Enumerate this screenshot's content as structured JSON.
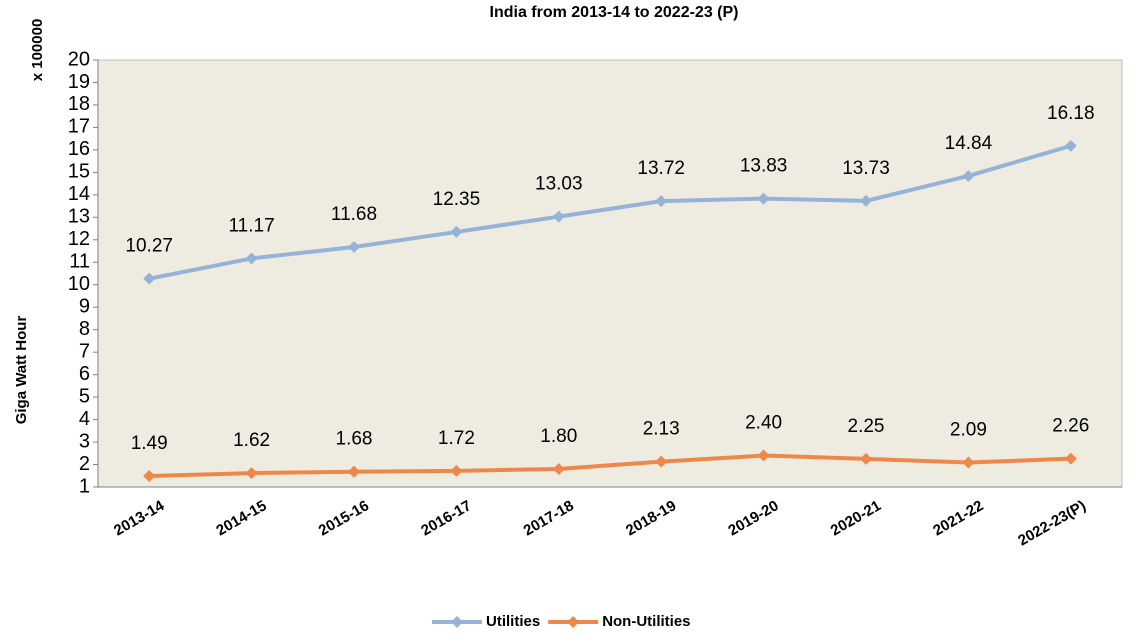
{
  "chart_data": {
    "type": "line",
    "title": "India from 2013-14 to 2022-23 (P)",
    "y_label": "Giga Watt Hour",
    "y_unit_note": "x 100000",
    "categories": [
      "2013-14",
      "2014-15",
      "2015-16",
      "2016-17",
      "2017-18",
      "2018-19",
      "2019-20",
      "2020-21",
      "2021-22",
      "2022-23(P)"
    ],
    "series": [
      {
        "name": "Utilities",
        "color": "#95b3d7",
        "values": [
          10.27,
          11.17,
          11.68,
          12.35,
          13.03,
          13.72,
          13.83,
          13.73,
          14.84,
          16.18
        ],
        "value_labels": [
          "10.27",
          "11.17",
          "11.68",
          "12.35",
          "13.03",
          "13.72",
          "13.83",
          "13.73",
          "14.84",
          "16.18"
        ]
      },
      {
        "name": "Non-Utilities",
        "color": "#f0874a",
        "values": [
          1.49,
          1.62,
          1.68,
          1.72,
          1.8,
          2.13,
          2.4,
          2.25,
          2.09,
          2.26
        ],
        "value_labels": [
          "1.49",
          "1.62",
          "1.68",
          "1.72",
          "1.80",
          "2.13",
          "2.40",
          "2.25",
          "2.09",
          "2.26"
        ]
      }
    ],
    "ylim": [
      1,
      20
    ],
    "yticks": [
      1,
      2,
      3,
      4,
      5,
      6,
      7,
      8,
      9,
      10,
      11,
      12,
      13,
      14,
      15,
      16,
      17,
      18,
      19,
      20
    ],
    "plot_background": "#eeece1",
    "legend": "bottom"
  }
}
